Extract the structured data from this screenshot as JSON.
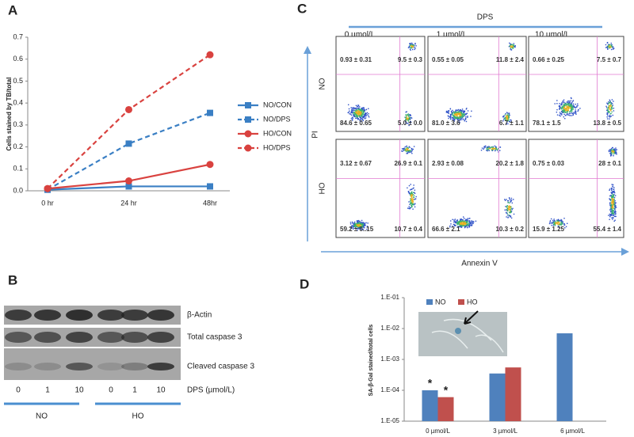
{
  "panel_labels": [
    "A",
    "B",
    "C",
    "D"
  ],
  "chart_data": [
    {
      "type": "line",
      "y_label": "Cells stained by TB/total",
      "categories": [
        "0 hr",
        "24 hr",
        "48hr"
      ],
      "ylim": [
        0,
        0.7
      ],
      "yticks": [
        {
          "value": 0,
          "label": "0.0"
        },
        0.1,
        0.2,
        0.3,
        0.4,
        0.5,
        0.6,
        0.7
      ],
      "series": [
        {
          "name": "NO/CON",
          "color": "#3a7fc4",
          "dashed": false,
          "marker": "square",
          "values": [
            0.005,
            0.02,
            0.02
          ]
        },
        {
          "name": "NO/DPS",
          "color": "#3a7fc4",
          "dashed": true,
          "marker": "square",
          "values": [
            0.005,
            0.215,
            0.355
          ]
        },
        {
          "name": "HO/CON",
          "color": "#d9423f",
          "dashed": false,
          "marker": "circle",
          "values": [
            0.01,
            0.045,
            0.12
          ]
        },
        {
          "name": "HO/DPS",
          "color": "#d9423f",
          "dashed": true,
          "marker": "circle",
          "values": [
            0.01,
            0.37,
            0.62
          ]
        }
      ]
    },
    {
      "type": "bar",
      "y_label": "SA-β-Gal stained/total cells",
      "log_scale": true,
      "legend": "top",
      "categories": [
        "0 µmol/L",
        "3 µmol/L",
        "6 µmol/L"
      ],
      "ylim": [
        1e-05,
        0.1
      ],
      "yticks": [
        {
          "value": 1e-05,
          "label": "1.E-05"
        },
        {
          "value": 0.0001,
          "label": "1.E-04"
        },
        {
          "value": 0.001,
          "label": "1.E-03"
        },
        {
          "value": 0.01,
          "label": "1.E-02"
        },
        {
          "value": 0.1,
          "label": "1.E-01"
        }
      ],
      "series": [
        {
          "name": "NO",
          "color": "#4f81bd",
          "values": [
            0.0001,
            0.00035,
            0.007
          ]
        },
        {
          "name": "HO",
          "color": "#c0504d",
          "values": [
            6e-05,
            0.00055,
            null
          ]
        }
      ],
      "annotations": [
        "*",
        "*"
      ]
    }
  ],
  "blot": {
    "bands": [
      "β-Actin",
      "Total caspase 3",
      "Cleaved caspase 3"
    ],
    "lanes": [
      "0",
      "1",
      "10",
      "0",
      "1",
      "10"
    ],
    "lane_title": "DPS (µmol/L)",
    "groups": [
      "NO",
      "HO"
    ]
  },
  "flow": {
    "title": "DPS",
    "columns": [
      "0  µmol/L",
      "1  µmol/L",
      "10  µmol/L"
    ],
    "rows": [
      "NO",
      "HO"
    ],
    "y_label": "PI",
    "x_label": "Annexin V",
    "quadrants": [
      [
        [
          "0.93 ± 0.31",
          "9.5 ± 0.3",
          "84.6 ± 0.65",
          "5.0 ± 0.0"
        ],
        [
          "0.55 ± 0.05",
          "11.8 ± 2.4",
          "81.0 ± 3.6",
          "6.7 ± 1.1"
        ],
        [
          "0.66 ± 0.25",
          "7.5 ± 0.7",
          "78.1 ± 1.5",
          "13.8 ± 0.5"
        ]
      ],
      [
        [
          "3.12 ± 0.67",
          "26.9 ± 0.1",
          "59.2 ± 0..15",
          "10.7 ± 0.4"
        ],
        [
          "2.93 ± 0.08",
          "20.2 ± 1.8",
          "66.6 ± 2.1",
          "10.3 ± 0.2"
        ],
        [
          "0.75 ± 0.03",
          "28 ± 0.1",
          "15.9 ± 1.25",
          "55.4 ± 1.4"
        ]
      ]
    ]
  }
}
